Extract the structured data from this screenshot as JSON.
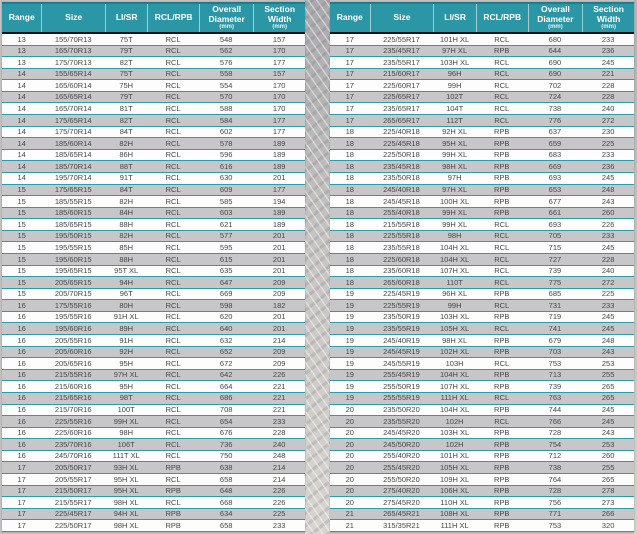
{
  "header": {
    "columns": [
      {
        "key": "range",
        "label": "Range",
        "unit": ""
      },
      {
        "key": "size",
        "label": "Size",
        "unit": ""
      },
      {
        "key": "li-sr",
        "label": "LI/SR",
        "unit": ""
      },
      {
        "key": "rcl-rpb",
        "label": "RCL/RPB",
        "unit": ""
      },
      {
        "key": "overall-diameter",
        "label": "Overall Diameter",
        "unit": "(mm)"
      },
      {
        "key": "section-width",
        "label": "Section Width",
        "unit": "(mm)"
      }
    ]
  },
  "left_table": {
    "rows": [
      [
        "13",
        "155/70R13",
        "75T",
        "RCL",
        "548",
        "157"
      ],
      [
        "13",
        "165/70R13",
        "79T",
        "RCL",
        "562",
        "170"
      ],
      [
        "13",
        "175/70R13",
        "82T",
        "RCL",
        "576",
        "177"
      ],
      [
        "14",
        "155/65R14",
        "75T",
        "RCL",
        "558",
        "157"
      ],
      [
        "14",
        "165/60R14",
        "75H",
        "RCL",
        "554",
        "170"
      ],
      [
        "14",
        "165/65R14",
        "79T",
        "RCL",
        "570",
        "170"
      ],
      [
        "14",
        "165/70R14",
        "81T",
        "RCL",
        "588",
        "170"
      ],
      [
        "14",
        "175/65R14",
        "82T",
        "RCL",
        "584",
        "177"
      ],
      [
        "14",
        "175/70R14",
        "84T",
        "RCL",
        "602",
        "177"
      ],
      [
        "14",
        "185/60R14",
        "82H",
        "RCL",
        "578",
        "189"
      ],
      [
        "14",
        "185/65R14",
        "86H",
        "RCL",
        "596",
        "189"
      ],
      [
        "14",
        "185/70R14",
        "88T",
        "RCL",
        "616",
        "189"
      ],
      [
        "14",
        "195/70R14",
        "91T",
        "RCL",
        "630",
        "201"
      ],
      [
        "15",
        "175/65R15",
        "84T",
        "RCL",
        "609",
        "177"
      ],
      [
        "15",
        "185/55R15",
        "82H",
        "RCL",
        "585",
        "194"
      ],
      [
        "15",
        "185/60R15",
        "84H",
        "RCL",
        "603",
        "189"
      ],
      [
        "15",
        "185/65R15",
        "88H",
        "RCL",
        "621",
        "189"
      ],
      [
        "15",
        "195/50R15",
        "82H",
        "RCL",
        "577",
        "201"
      ],
      [
        "15",
        "195/55R15",
        "85H",
        "RCL",
        "595",
        "201"
      ],
      [
        "15",
        "195/60R15",
        "88H",
        "RCL",
        "615",
        "201"
      ],
      [
        "15",
        "195/65R15",
        "95T XL",
        "RCL",
        "635",
        "201"
      ],
      [
        "15",
        "205/65R15",
        "94H",
        "RCL",
        "647",
        "209"
      ],
      [
        "15",
        "205/70R15",
        "96T",
        "RCL",
        "669",
        "209"
      ],
      [
        "16",
        "175/55R16",
        "80H",
        "RCL",
        "598",
        "182"
      ],
      [
        "16",
        "195/55R16",
        "91H XL",
        "RCL",
        "620",
        "201"
      ],
      [
        "16",
        "195/60R16",
        "89H",
        "RCL",
        "640",
        "201"
      ],
      [
        "16",
        "205/55R16",
        "91H",
        "RCL",
        "632",
        "214"
      ],
      [
        "16",
        "205/60R16",
        "92H",
        "RCL",
        "652",
        "209"
      ],
      [
        "16",
        "205/65R16",
        "95H",
        "RCL",
        "672",
        "209"
      ],
      [
        "16",
        "215/55R16",
        "97H XL",
        "RCL",
        "642",
        "226"
      ],
      [
        "16",
        "215/60R16",
        "95H",
        "RCL",
        "664",
        "221"
      ],
      [
        "16",
        "215/65R16",
        "98T",
        "RCL",
        "686",
        "221"
      ],
      [
        "16",
        "215/70R16",
        "100T",
        "RCL",
        "708",
        "221"
      ],
      [
        "16",
        "225/55R16",
        "99H XL",
        "RCL",
        "654",
        "233"
      ],
      [
        "16",
        "225/60R16",
        "98H",
        "RCL",
        "676",
        "228"
      ],
      [
        "16",
        "235/70R16",
        "106T",
        "RCL",
        "736",
        "240"
      ],
      [
        "16",
        "245/70R16",
        "111T XL",
        "RCL",
        "750",
        "248"
      ],
      [
        "17",
        "205/50R17",
        "93H XL",
        "RPB",
        "638",
        "214"
      ],
      [
        "17",
        "205/55R17",
        "95H XL",
        "RCL",
        "658",
        "214"
      ],
      [
        "17",
        "215/50R17",
        "95H XL",
        "RPB",
        "648",
        "226"
      ],
      [
        "17",
        "215/55R17",
        "98H XL",
        "RCL",
        "668",
        "226"
      ],
      [
        "17",
        "225/45R17",
        "94H XL",
        "RPB",
        "634",
        "225"
      ],
      [
        "17",
        "225/50R17",
        "98H XL",
        "RPB",
        "658",
        "233"
      ]
    ]
  },
  "right_table": {
    "rows": [
      [
        "17",
        "225/55R17",
        "101H XL",
        "RCL",
        "680",
        "233"
      ],
      [
        "17",
        "235/45R17",
        "97H XL",
        "RPB",
        "644",
        "236"
      ],
      [
        "17",
        "235/55R17",
        "103H XL",
        "RCL",
        "690",
        "245"
      ],
      [
        "17",
        "215/60R17",
        "96H",
        "RCL",
        "690",
        "221"
      ],
      [
        "17",
        "225/60R17",
        "99H",
        "RCL",
        "702",
        "228"
      ],
      [
        "17",
        "225/65R17",
        "102T",
        "RCL",
        "724",
        "228"
      ],
      [
        "17",
        "235/65R17",
        "104T",
        "RCL",
        "738",
        "240"
      ],
      [
        "17",
        "265/65R17",
        "112T",
        "RCL",
        "776",
        "272"
      ],
      [
        "18",
        "225/40R18",
        "92H XL",
        "RPB",
        "637",
        "230"
      ],
      [
        "18",
        "225/45R18",
        "95H XL",
        "RPB",
        "659",
        "225"
      ],
      [
        "18",
        "225/50R18",
        "99H XL",
        "RPB",
        "683",
        "233"
      ],
      [
        "18",
        "235/45R18",
        "98H XL",
        "RPB",
        "669",
        "236"
      ],
      [
        "18",
        "235/50R18",
        "97H",
        "RPB",
        "693",
        "245"
      ],
      [
        "18",
        "245/40R18",
        "97H XL",
        "RPB",
        "653",
        "248"
      ],
      [
        "18",
        "245/45R18",
        "100H XL",
        "RPB",
        "677",
        "243"
      ],
      [
        "18",
        "255/40R18",
        "99H XL",
        "RPB",
        "661",
        "260"
      ],
      [
        "18",
        "215/55R18",
        "99H XL",
        "RCL",
        "693",
        "226"
      ],
      [
        "18",
        "225/55R18",
        "98H",
        "RCL",
        "705",
        "233"
      ],
      [
        "18",
        "235/55R18",
        "104H XL",
        "RCL",
        "715",
        "245"
      ],
      [
        "18",
        "225/60R18",
        "104H XL",
        "RCL",
        "727",
        "228"
      ],
      [
        "18",
        "235/60R18",
        "107H XL",
        "RCL",
        "739",
        "240"
      ],
      [
        "18",
        "265/60R18",
        "110T",
        "RCL",
        "775",
        "272"
      ],
      [
        "19",
        "225/45R19",
        "96H XL",
        "RPB",
        "685",
        "225"
      ],
      [
        "19",
        "225/55R19",
        "99H",
        "RCL",
        "731",
        "233"
      ],
      [
        "19",
        "235/50R19",
        "103H XL",
        "RPB",
        "719",
        "245"
      ],
      [
        "19",
        "235/55R19",
        "105H XL",
        "RCL",
        "741",
        "245"
      ],
      [
        "19",
        "245/40R19",
        "98H XL",
        "RPB",
        "679",
        "248"
      ],
      [
        "19",
        "245/45R19",
        "102H XL",
        "RPB",
        "703",
        "243"
      ],
      [
        "19",
        "245/55R19",
        "103H",
        "RCL",
        "753",
        "253"
      ],
      [
        "19",
        "255/45R19",
        "104H XL",
        "RPB",
        "713",
        "255"
      ],
      [
        "19",
        "255/50R19",
        "107H XL",
        "RPB",
        "739",
        "265"
      ],
      [
        "19",
        "255/55R19",
        "111H XL",
        "RCL",
        "763",
        "265"
      ],
      [
        "20",
        "235/50R20",
        "104H XL",
        "RPB",
        "744",
        "245"
      ],
      [
        "20",
        "235/55R20",
        "102H",
        "RCL",
        "766",
        "245"
      ],
      [
        "20",
        "245/45R20",
        "103H XL",
        "RPB",
        "728",
        "243"
      ],
      [
        "20",
        "245/50R20",
        "102H",
        "RPB",
        "754",
        "253"
      ],
      [
        "20",
        "255/40R20",
        "101H XL",
        "RPB",
        "712",
        "260"
      ],
      [
        "20",
        "255/45R20",
        "105H XL",
        "RPB",
        "738",
        "255"
      ],
      [
        "20",
        "255/50R20",
        "109H XL",
        "RPB",
        "764",
        "265"
      ],
      [
        "20",
        "275/40R20",
        "106H XL",
        "RPB",
        "728",
        "278"
      ],
      [
        "20",
        "275/45R20",
        "110H XL",
        "RPB",
        "756",
        "273"
      ],
      [
        "21",
        "265/45R21",
        "108H XL",
        "RPB",
        "771",
        "266"
      ],
      [
        "21",
        "315/35R21",
        "111H XL",
        "RPB",
        "753",
        "320"
      ]
    ]
  },
  "colors": {
    "header_teal": "#2b96a5",
    "header_top_border": "#1d7d8c",
    "row_gray": "#c7c6c9",
    "row_white": "#fdfdfd",
    "row_separator_teal": "#2f9aa8",
    "header_underline_dark": "#15151d",
    "body_text": "#474747",
    "header_text": "#ffffff"
  }
}
